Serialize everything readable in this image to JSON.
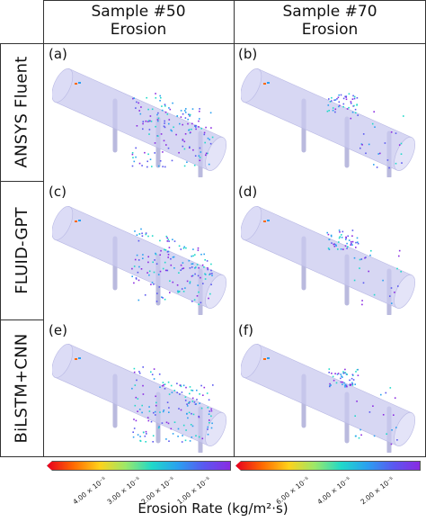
{
  "columns": [
    {
      "title": "Sample #50",
      "subtitle": "Erosion"
    },
    {
      "title": "Sample #70",
      "subtitle": "Erosion"
    }
  ],
  "rows": [
    {
      "label": "ANSYS Fluent"
    },
    {
      "label": "FLUID-GPT"
    },
    {
      "label": "BiLSTM+CNN"
    }
  ],
  "panel_labels": [
    "(a)",
    "(b)",
    "(c)",
    "(d)",
    "(e)",
    "(f)"
  ],
  "colorbar": {
    "title": "Erosion Rate (kg/m²·s)",
    "left_ticks": [
      "4.00 × 10⁻⁵",
      "3.00 × 10⁻⁵",
      "2.00 × 10⁻⁵",
      "1.00 × 10⁻⁵"
    ],
    "right_ticks": [
      "6.00 × 10⁻⁵",
      "4.00 × 10⁻⁵",
      "2.00 × 10⁻⁵"
    ],
    "colors": [
      "#e8001f",
      "#ff6a00",
      "#ffd21a",
      "#9be86a",
      "#1fd9c9",
      "#2aa0f0",
      "#5a58f0",
      "#8a2be2"
    ]
  },
  "pipe_color": "#c9c9ef"
}
